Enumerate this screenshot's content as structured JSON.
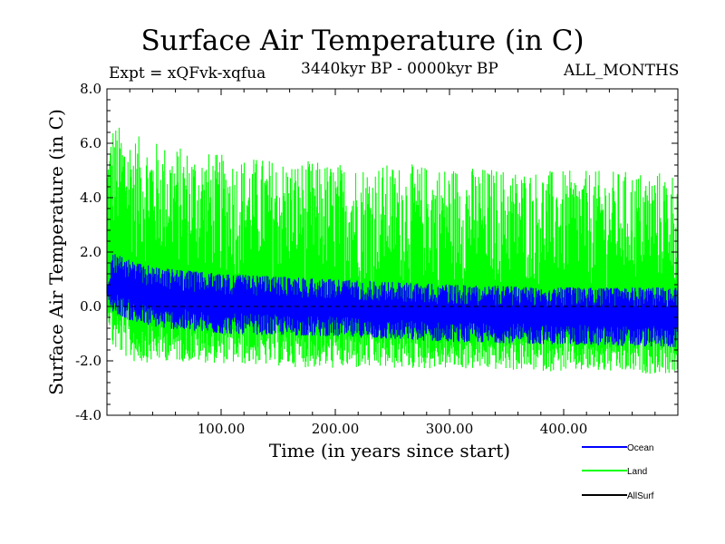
{
  "chart_data": {
    "type": "line",
    "title": "Surface Air Temperature (in C)",
    "subtitle": "3440kyr BP - 0000kyr BP",
    "expt_label": "Expt = xQFvk-xqfua",
    "months_label": "ALL_MONTHS",
    "xlabel": "Time (in years since start)",
    "ylabel": "Surface Air Temperature (in C)",
    "xlim": [
      0,
      500
    ],
    "ylim": [
      -4.0,
      8.0
    ],
    "x_ticks": [
      "100.00",
      "200.00",
      "300.00",
      "400.00"
    ],
    "y_ticks": [
      "-4.0",
      "-2.0",
      "0.0",
      "2.0",
      "4.0",
      "6.0",
      "8.0"
    ],
    "reference_line_y": 0.0,
    "series": [
      {
        "name": "Land",
        "color": "#00ff00",
        "envelope": {
          "x": [
            0,
            5,
            25,
            50,
            100,
            200,
            300,
            400,
            500
          ],
          "upper": [
            6.0,
            6.8,
            6.3,
            6.0,
            5.6,
            5.3,
            5.2,
            5.0,
            5.0
          ],
          "lower": [
            -0.2,
            -1.6,
            -2.1,
            -2.0,
            -2.1,
            -2.3,
            -2.3,
            -2.4,
            -2.5
          ],
          "upper_min": [
            1.0,
            2.2,
            1.6,
            1.3,
            1.0,
            0.7,
            0.6,
            0.6,
            0.6
          ],
          "lower_max": [
            0.8,
            0.3,
            -0.2,
            -0.4,
            -0.5,
            -0.6,
            -0.8,
            -0.9,
            -1.0
          ]
        }
      },
      {
        "name": "Ocean",
        "color": "#0000ff",
        "envelope": {
          "x": [
            0,
            5,
            25,
            50,
            100,
            200,
            300,
            400,
            500
          ],
          "upper": [
            0.8,
            2.0,
            1.6,
            1.4,
            1.2,
            1.0,
            0.8,
            0.7,
            0.7
          ],
          "lower": [
            0.4,
            -0.2,
            -0.6,
            -0.8,
            -1.0,
            -1.1,
            -1.3,
            -1.4,
            -1.5
          ]
        }
      },
      {
        "name": "AllSurf",
        "color": "#000000",
        "envelope": null
      }
    ]
  }
}
